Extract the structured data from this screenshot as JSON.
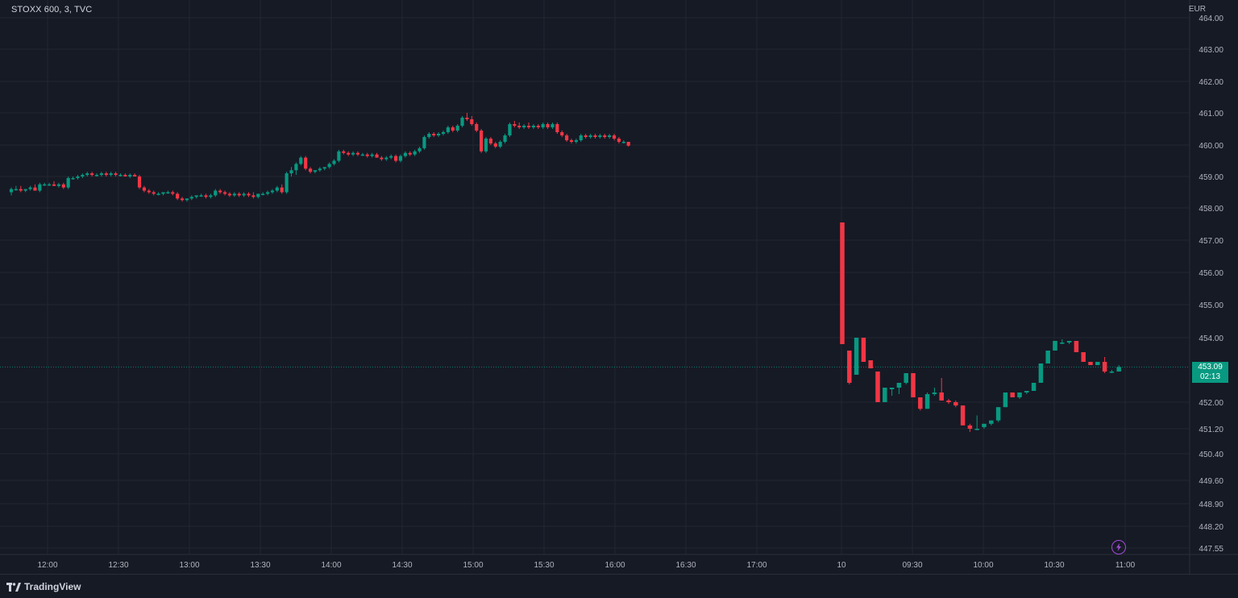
{
  "header": {
    "symbol": "STOXX 600, 3, TVC",
    "currency": "EUR"
  },
  "price_tag": {
    "price": "453.09",
    "countdown": "02:13"
  },
  "footer": {
    "brand": "TradingView"
  },
  "icons": {
    "logo": "tradingview-logo-icon",
    "bolt": "lightning-bolt-icon"
  },
  "colors": {
    "up": "#089981",
    "down": "#f23645",
    "background": "#161a25",
    "grid": "#22262f",
    "text": "#b2b5be",
    "bolt": "#a24bd6"
  },
  "chart_data": {
    "type": "candlestick",
    "y_axis": {
      "range": [
        447.55,
        464.0
      ],
      "tick_labels": [
        "464.00",
        "463.00",
        "462.00",
        "461.00",
        "460.00",
        "459.00",
        "458.00",
        "457.00",
        "456.00",
        "455.00",
        "454.00",
        "452.00",
        "451.20",
        "450.40",
        "449.60",
        "448.90",
        "448.20",
        "447.55"
      ],
      "note_scale": "non-linear below 454"
    },
    "x_axis": {
      "tick_labels": [
        "12:00",
        "12:30",
        "13:00",
        "13:30",
        "14:00",
        "14:30",
        "15:00",
        "15:30",
        "16:00",
        "16:30",
        "17:00",
        "10",
        "09:30",
        "10:00",
        "10:30",
        "11:00"
      ]
    },
    "last_price": 453.09,
    "grid": true,
    "candles_session1": [
      [
        458.5,
        458.65,
        458.4,
        458.6
      ],
      [
        458.6,
        458.7,
        458.55,
        458.6
      ],
      [
        458.6,
        458.7,
        458.5,
        458.55
      ],
      [
        458.55,
        458.6,
        458.5,
        458.6
      ],
      [
        458.6,
        458.7,
        458.55,
        458.65
      ],
      [
        458.65,
        458.75,
        458.55,
        458.55
      ],
      [
        458.55,
        458.8,
        458.5,
        458.75
      ],
      [
        458.75,
        458.8,
        458.7,
        458.75
      ],
      [
        458.75,
        458.8,
        458.7,
        458.75
      ],
      [
        458.75,
        458.85,
        458.7,
        458.7
      ],
      [
        458.7,
        458.8,
        458.65,
        458.75
      ],
      [
        458.75,
        458.8,
        458.6,
        458.65
      ],
      [
        458.65,
        459.0,
        458.6,
        458.95
      ],
      [
        458.95,
        459.0,
        458.9,
        458.95
      ],
      [
        458.95,
        459.05,
        458.9,
        459.0
      ],
      [
        459.0,
        459.1,
        458.95,
        459.05
      ],
      [
        459.05,
        459.15,
        459.0,
        459.1
      ],
      [
        459.1,
        459.15,
        459.0,
        459.05
      ],
      [
        459.05,
        459.1,
        459.0,
        459.05
      ],
      [
        459.05,
        459.15,
        459.0,
        459.1
      ],
      [
        459.1,
        459.15,
        459.0,
        459.05
      ],
      [
        459.05,
        459.15,
        459.0,
        459.1
      ],
      [
        459.1,
        459.15,
        459.0,
        459.05
      ],
      [
        459.05,
        459.1,
        459.0,
        459.05
      ],
      [
        459.05,
        459.1,
        459.0,
        459.0
      ],
      [
        459.0,
        459.1,
        458.95,
        459.05
      ],
      [
        459.05,
        459.1,
        459.0,
        459.0
      ],
      [
        459.0,
        459.05,
        458.6,
        458.65
      ],
      [
        458.65,
        458.7,
        458.5,
        458.55
      ],
      [
        458.55,
        458.6,
        458.45,
        458.5
      ],
      [
        458.5,
        458.55,
        458.4,
        458.45
      ],
      [
        458.45,
        458.5,
        458.4,
        458.45
      ],
      [
        458.45,
        458.5,
        458.4,
        458.5
      ],
      [
        458.5,
        458.55,
        458.45,
        458.5
      ],
      [
        458.5,
        458.55,
        458.4,
        458.45
      ],
      [
        458.45,
        458.5,
        458.25,
        458.3
      ],
      [
        458.3,
        458.35,
        458.2,
        458.25
      ],
      [
        458.25,
        458.3,
        458.2,
        458.3
      ],
      [
        458.3,
        458.4,
        458.25,
        458.35
      ],
      [
        458.35,
        458.4,
        458.3,
        458.4
      ],
      [
        458.4,
        458.45,
        458.35,
        458.4
      ],
      [
        458.4,
        458.45,
        458.3,
        458.35
      ],
      [
        458.35,
        458.45,
        458.3,
        458.4
      ],
      [
        458.4,
        458.6,
        458.35,
        458.55
      ],
      [
        458.55,
        458.6,
        458.45,
        458.5
      ],
      [
        458.5,
        458.55,
        458.4,
        458.45
      ],
      [
        458.45,
        458.5,
        458.35,
        458.4
      ],
      [
        458.4,
        458.5,
        458.35,
        458.45
      ],
      [
        458.45,
        458.5,
        458.35,
        458.4
      ],
      [
        458.4,
        458.5,
        458.35,
        458.45
      ],
      [
        458.45,
        458.5,
        458.35,
        458.4
      ],
      [
        458.4,
        458.5,
        458.3,
        458.35
      ],
      [
        458.35,
        458.45,
        458.3,
        458.45
      ],
      [
        458.45,
        458.5,
        458.4,
        458.45
      ],
      [
        458.45,
        458.55,
        458.4,
        458.5
      ],
      [
        458.5,
        458.6,
        458.45,
        458.55
      ],
      [
        458.55,
        458.7,
        458.5,
        458.65
      ],
      [
        458.65,
        458.75,
        458.45,
        458.5
      ],
      [
        458.5,
        459.15,
        458.45,
        459.1
      ],
      [
        459.1,
        459.3,
        459.0,
        459.2
      ],
      [
        459.2,
        459.45,
        459.05,
        459.4
      ],
      [
        459.4,
        459.65,
        459.35,
        459.6
      ],
      [
        459.6,
        459.65,
        459.2,
        459.25
      ],
      [
        459.25,
        459.3,
        459.1,
        459.15
      ],
      [
        459.15,
        459.2,
        459.1,
        459.2
      ],
      [
        459.2,
        459.3,
        459.15,
        459.25
      ],
      [
        459.25,
        459.3,
        459.2,
        459.3
      ],
      [
        459.3,
        459.45,
        459.25,
        459.4
      ],
      [
        459.4,
        459.55,
        459.35,
        459.5
      ],
      [
        459.5,
        459.85,
        459.45,
        459.8
      ],
      [
        459.8,
        459.85,
        459.7,
        459.75
      ],
      [
        459.75,
        459.8,
        459.65,
        459.7
      ],
      [
        459.7,
        459.8,
        459.65,
        459.75
      ],
      [
        459.75,
        459.8,
        459.65,
        459.7
      ],
      [
        459.7,
        459.75,
        459.65,
        459.7
      ],
      [
        459.7,
        459.75,
        459.6,
        459.65
      ],
      [
        459.65,
        459.75,
        459.6,
        459.7
      ],
      [
        459.7,
        459.75,
        459.6,
        459.6
      ],
      [
        459.6,
        459.65,
        459.5,
        459.55
      ],
      [
        459.55,
        459.65,
        459.5,
        459.6
      ],
      [
        459.6,
        459.7,
        459.55,
        459.65
      ],
      [
        459.65,
        459.7,
        459.45,
        459.5
      ],
      [
        459.5,
        459.7,
        459.45,
        459.65
      ],
      [
        459.65,
        459.8,
        459.6,
        459.75
      ],
      [
        459.75,
        459.8,
        459.65,
        459.7
      ],
      [
        459.7,
        459.85,
        459.65,
        459.8
      ],
      [
        459.8,
        459.95,
        459.75,
        459.9
      ],
      [
        459.9,
        460.3,
        459.85,
        460.25
      ],
      [
        460.25,
        460.4,
        460.2,
        460.35
      ],
      [
        460.35,
        460.4,
        460.25,
        460.3
      ],
      [
        460.3,
        460.4,
        460.25,
        460.35
      ],
      [
        460.35,
        460.45,
        460.3,
        460.4
      ],
      [
        460.4,
        460.6,
        460.35,
        460.55
      ],
      [
        460.55,
        460.6,
        460.4,
        460.45
      ],
      [
        460.45,
        460.65,
        460.4,
        460.6
      ],
      [
        460.6,
        460.9,
        460.55,
        460.85
      ],
      [
        460.85,
        461.0,
        460.75,
        460.8
      ],
      [
        460.8,
        460.9,
        460.6,
        460.65
      ],
      [
        460.65,
        460.7,
        460.4,
        460.45
      ],
      [
        460.45,
        460.5,
        459.75,
        459.8
      ],
      [
        459.8,
        460.25,
        459.75,
        460.2
      ],
      [
        460.2,
        460.25,
        460.0,
        460.05
      ],
      [
        460.05,
        460.1,
        459.9,
        459.95
      ],
      [
        459.95,
        460.15,
        459.9,
        460.1
      ],
      [
        460.1,
        460.35,
        460.05,
        460.3
      ],
      [
        460.3,
        460.7,
        460.25,
        460.65
      ],
      [
        460.65,
        460.75,
        460.55,
        460.6
      ],
      [
        460.6,
        460.7,
        460.5,
        460.55
      ],
      [
        460.55,
        460.65,
        460.5,
        460.6
      ],
      [
        460.6,
        460.7,
        460.5,
        460.55
      ],
      [
        460.55,
        460.65,
        460.5,
        460.6
      ],
      [
        460.6,
        460.65,
        460.5,
        460.55
      ],
      [
        460.55,
        460.7,
        460.5,
        460.65
      ],
      [
        460.65,
        460.7,
        460.5,
        460.55
      ],
      [
        460.55,
        460.7,
        460.5,
        460.65
      ],
      [
        460.65,
        460.7,
        460.35,
        460.4
      ],
      [
        460.4,
        460.45,
        460.25,
        460.3
      ],
      [
        460.3,
        460.35,
        460.1,
        460.15
      ],
      [
        460.15,
        460.2,
        460.05,
        460.1
      ],
      [
        460.1,
        460.2,
        460.05,
        460.15
      ],
      [
        460.15,
        460.35,
        460.1,
        460.3
      ],
      [
        460.3,
        460.35,
        460.2,
        460.25
      ],
      [
        460.25,
        460.35,
        460.2,
        460.3
      ],
      [
        460.3,
        460.35,
        460.2,
        460.25
      ],
      [
        460.25,
        460.35,
        460.2,
        460.3
      ],
      [
        460.3,
        460.35,
        460.2,
        460.25
      ],
      [
        460.25,
        460.35,
        460.2,
        460.3
      ],
      [
        460.3,
        460.35,
        460.15,
        460.2
      ],
      [
        460.2,
        460.25,
        460.05,
        460.1
      ],
      [
        460.1,
        460.15,
        460.05,
        460.1
      ],
      [
        460.1,
        460.1,
        459.95,
        459.98
      ]
    ],
    "candles_session2": [
      [
        457.55,
        457.55,
        453.8,
        453.8
      ],
      [
        453.6,
        453.6,
        452.55,
        452.6
      ],
      [
        452.85,
        454.0,
        452.85,
        454.0
      ],
      [
        454.0,
        454.0,
        453.25,
        453.25
      ],
      [
        453.3,
        453.3,
        453.05,
        453.05
      ],
      [
        452.95,
        452.95,
        452.0,
        452.0
      ],
      [
        452.0,
        452.45,
        452.0,
        452.45
      ],
      [
        452.4,
        452.45,
        452.2,
        452.45
      ],
      [
        452.45,
        452.6,
        452.25,
        452.6
      ],
      [
        452.6,
        452.9,
        452.55,
        452.9
      ],
      [
        452.9,
        452.9,
        452.15,
        452.15
      ],
      [
        452.15,
        452.15,
        451.75,
        451.8
      ],
      [
        451.8,
        452.3,
        451.8,
        452.25
      ],
      [
        452.25,
        452.45,
        452.2,
        452.3
      ],
      [
        452.3,
        452.75,
        452.05,
        452.05
      ],
      [
        452.05,
        452.1,
        451.95,
        452.0
      ],
      [
        452.0,
        452.05,
        451.85,
        451.9
      ],
      [
        451.9,
        451.9,
        451.3,
        451.3
      ],
      [
        451.3,
        451.35,
        451.1,
        451.2
      ],
      [
        451.2,
        451.6,
        451.15,
        451.2
      ],
      [
        451.25,
        451.35,
        451.2,
        451.35
      ],
      [
        451.35,
        451.45,
        451.3,
        451.45
      ],
      [
        451.45,
        451.85,
        451.4,
        451.85
      ],
      [
        451.85,
        452.3,
        451.85,
        452.3
      ],
      [
        452.3,
        452.3,
        452.15,
        452.15
      ],
      [
        452.15,
        452.3,
        452.1,
        452.3
      ],
      [
        452.3,
        452.35,
        452.25,
        452.35
      ],
      [
        452.35,
        452.6,
        452.35,
        452.6
      ],
      [
        452.6,
        453.2,
        452.6,
        453.2
      ],
      [
        453.2,
        453.6,
        453.2,
        453.6
      ],
      [
        453.6,
        453.9,
        453.6,
        453.9
      ],
      [
        453.85,
        453.95,
        453.8,
        453.85
      ],
      [
        453.85,
        453.9,
        453.8,
        453.9
      ],
      [
        453.9,
        453.9,
        453.55,
        453.55
      ],
      [
        453.55,
        453.55,
        453.25,
        453.25
      ],
      [
        453.25,
        453.25,
        453.15,
        453.15
      ],
      [
        453.15,
        453.25,
        453.15,
        453.25
      ],
      [
        453.25,
        453.4,
        452.9,
        452.95
      ],
      [
        452.95,
        453.0,
        452.9,
        452.95
      ],
      [
        452.95,
        453.15,
        452.95,
        453.09
      ]
    ]
  }
}
